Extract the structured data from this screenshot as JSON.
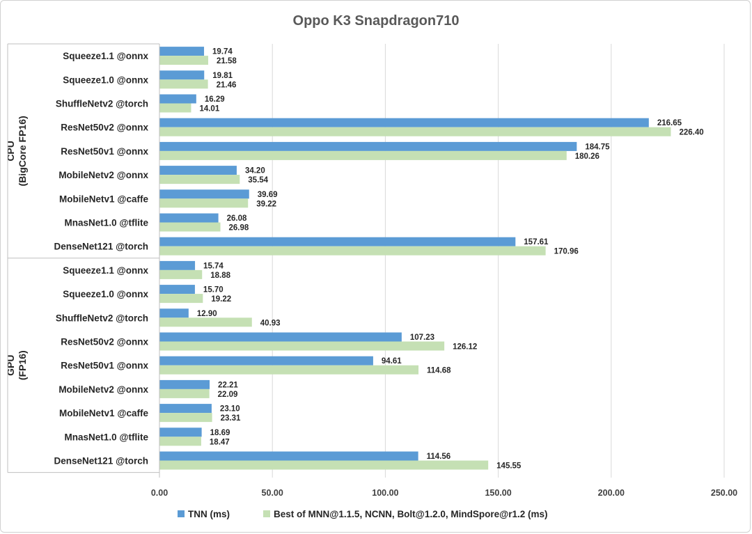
{
  "chart_data": {
    "type": "bar",
    "orientation": "horizontal",
    "title": "Oppo K3 Snapdragon710",
    "xlim": [
      0,
      250
    ],
    "x_ticks": [
      "0.00",
      "50.00",
      "100.00",
      "150.00",
      "200.00",
      "250.00"
    ],
    "grid": true,
    "legend_position": "bottom",
    "groups": [
      {
        "label": "CPU\n(BigCore FP16)",
        "categories": [
          "Squeeze1.1 @onnx",
          "Squeeze1.0 @onnx",
          "ShuffleNetv2 @torch",
          "ResNet50v2 @onnx",
          "ResNet50v1 @onnx",
          "MobileNetv2 @onnx",
          "MobileNetv1 @caffe",
          "MnasNet1.0 @tflite",
          "DenseNet121 @torch"
        ]
      },
      {
        "label": "GPU\n(FP16)",
        "categories": [
          "Squeeze1.1 @onnx",
          "Squeeze1.0 @onnx",
          "ShuffleNetv2 @torch",
          "ResNet50v2 @onnx",
          "ResNet50v1 @onnx",
          "MobileNetv2 @onnx",
          "MobileNetv1 @caffe",
          "MnasNet1.0 @tflite",
          "DenseNet121 @torch"
        ]
      }
    ],
    "series": [
      {
        "name": "TNN (ms)",
        "color": "#5b9bd5",
        "values": [
          19.74,
          19.81,
          16.29,
          216.65,
          184.75,
          34.2,
          39.69,
          26.08,
          157.61,
          15.74,
          15.7,
          12.9,
          107.23,
          94.61,
          22.21,
          23.1,
          18.69,
          114.56
        ],
        "labels": [
          "19.74",
          "19.81",
          "16.29",
          "216.65",
          "184.75",
          "34.20",
          "39.69",
          "26.08",
          "157.61",
          "15.74",
          "15.70",
          "12.90",
          "107.23",
          "94.61",
          "22.21",
          "23.10",
          "18.69",
          "114.56"
        ]
      },
      {
        "name": "Best of MNN@1.1.5, NCNN, Bolt@1.2.0, MindSpore@r1.2 (ms)",
        "color": "#c5e0b4",
        "values": [
          21.58,
          21.46,
          14.01,
          226.4,
          180.26,
          35.54,
          39.22,
          26.98,
          170.96,
          18.88,
          19.22,
          40.93,
          126.12,
          114.68,
          22.09,
          23.31,
          18.47,
          145.55
        ],
        "labels": [
          "21.58",
          "21.46",
          "14.01",
          "226.40",
          "180.26",
          "35.54",
          "39.22",
          "26.98",
          "170.96",
          "18.88",
          "19.22",
          "40.93",
          "126.12",
          "114.68",
          "22.09",
          "23.31",
          "18.47",
          "145.55"
        ]
      }
    ]
  }
}
